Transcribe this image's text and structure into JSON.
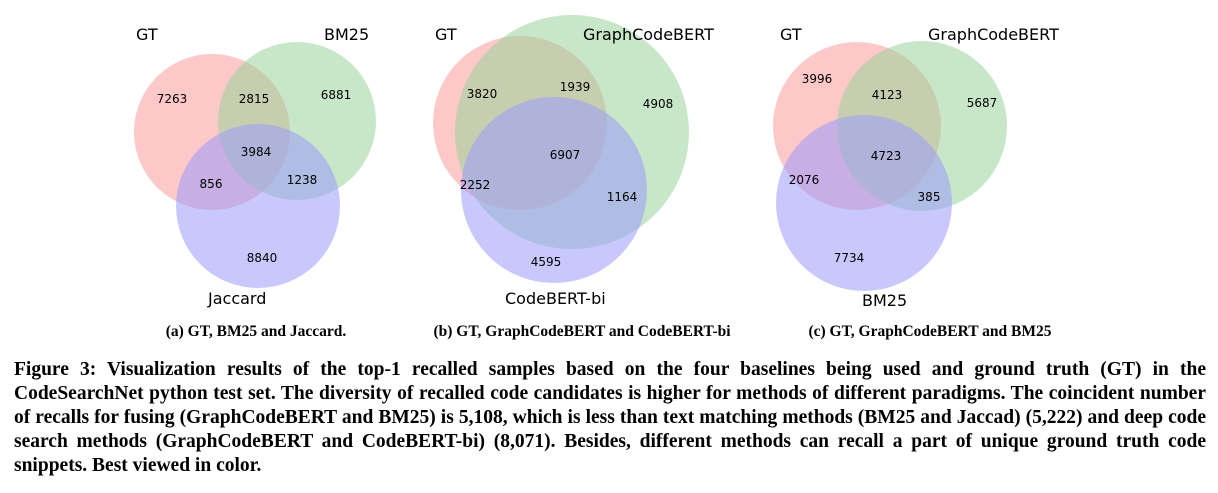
{
  "panels": [
    {
      "caption": "(a) GT, BM25 and Jaccard.",
      "sets": [
        "GT",
        "BM25",
        "Jaccard"
      ],
      "colors": [
        "#fb9a9a",
        "#9bd49b",
        "#9a9afb"
      ],
      "regions": {
        "only_a": "7263",
        "only_b": "6881",
        "only_c": "8840",
        "ab": "2815",
        "ac": "856",
        "bc": "1238",
        "abc": "3984"
      }
    },
    {
      "caption": "(b) GT, GraphCodeBERT and CodeBERT-bi",
      "sets": [
        "GT",
        "GraphCodeBERT",
        "CodeBERT-bi"
      ],
      "colors": [
        "#fb9a9a",
        "#9bd49b",
        "#9a9afb"
      ],
      "regions": {
        "only_a": "3820",
        "only_b": "4908",
        "only_c": "4595",
        "ab": "1939",
        "ac": "2252",
        "bc": "1164",
        "abc": "6907"
      }
    },
    {
      "caption": "(c) GT, GraphCodeBERT and BM25",
      "sets": [
        "GT",
        "GraphCodeBERT",
        "BM25"
      ],
      "colors": [
        "#fb9a9a",
        "#9bd49b",
        "#9a9afb"
      ],
      "regions": {
        "only_a": "3996",
        "only_b": "5687",
        "only_c": "7734",
        "ab": "4123",
        "ac": "2076",
        "bc": "385",
        "abc": "4723"
      }
    }
  ],
  "figure_caption": "Figure 3: Visualization results of the top-1 recalled samples based on the four baselines being used and ground truth (GT) in the CodeSearchNet python test set. The diversity of recalled code candidates is higher for methods of different paradigms. The coincident number of recalls for fusing (GraphCodeBERT and BM25) is 5,108, which is less than text matching methods (BM25 and Jaccad) (5,222) and deep code search methods (GraphCodeBERT and CodeBERT-bi) (8,071). Besides, different methods can recall a part of unique ground truth code snippets. Best viewed in color."
}
